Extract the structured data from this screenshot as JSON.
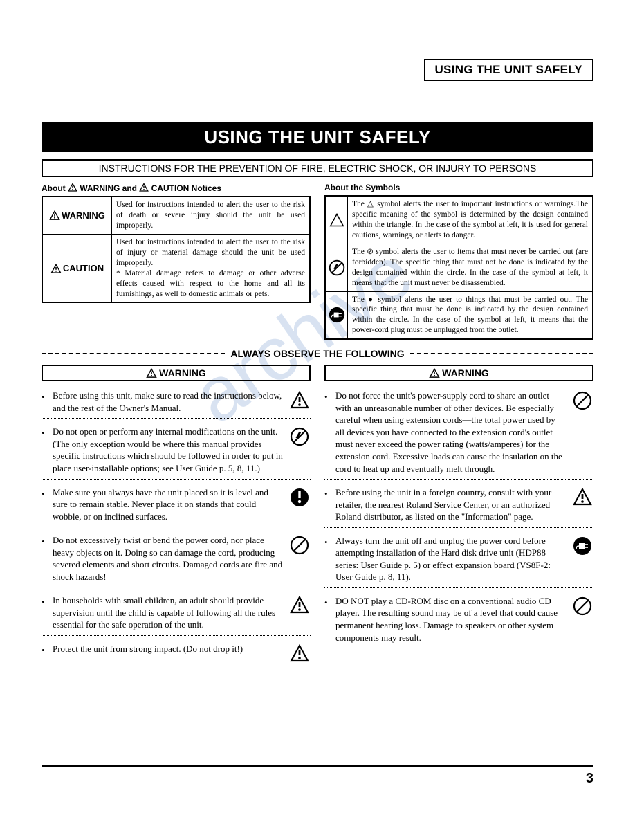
{
  "header": {
    "title": "USING THE UNIT SAFELY"
  },
  "banner": "USING THE UNIT SAFELY",
  "instructions_bar": "INSTRUCTIONS FOR THE PREVENTION OF FIRE, ELECTRIC SHOCK, OR INJURY TO PERSONS",
  "notices": {
    "heading": "About ⚠ WARNING and ⚠ CAUTION Notices",
    "rows": [
      {
        "label": "WARNING",
        "text": "Used for instructions intended to alert the user to the risk of death or severe injury should the unit be used improperly."
      },
      {
        "label": "CAUTION",
        "text": "Used for instructions intended to alert the user to the risk of injury or material damage should the unit be used improperly.\n* Material damage refers to damage or other adverse effects caused with respect to the home and all its furnishings, as well to domestic animals or pets."
      }
    ]
  },
  "symbols": {
    "heading": "About the Symbols",
    "rows": [
      {
        "icon": "triangle",
        "text": "The △ symbol alerts the user to important instructions or warnings.The specific meaning of the symbol is determined by the design contained within the triangle. In the case of the symbol at left, it is used for general cautions, warnings, or alerts to danger."
      },
      {
        "icon": "prohibit-disassemble",
        "text": "The ⊘ symbol alerts the user to items that must never be carried out (are forbidden). The specific thing that must not be done is indicated by the design contained within the circle. In the case of the symbol at left, it means that the unit must never be disassembled."
      },
      {
        "icon": "plug",
        "text": "The ● symbol alerts the user to things that must be carried out. The specific thing that must be done is indicated by the design contained within the circle. In the case of the symbol at left, it means that the power-cord plug must be unplugged from the outlet."
      }
    ]
  },
  "divider": "ALWAYS OBSERVE THE FOLLOWING",
  "warn_label": "WARNING",
  "left_items": [
    {
      "icon": "alert",
      "text": "Before using this unit, make sure to read the instructions below, and the rest of the Owner's Manual."
    },
    {
      "icon": "prohibit-disassemble",
      "text": "Do not open or perform any internal modifications on the unit. (The only exception would be where this manual provides specific instructions which should be followed in order to put in place user-installable options; see User Guide p. 5, 8, 11.)"
    },
    {
      "icon": "mandatory",
      "text": "Make sure you always have the unit placed so it is level and sure to remain stable. Never place it on stands that could wobble, or on inclined surfaces."
    },
    {
      "icon": "prohibit",
      "text": "Do not excessively twist or bend the power cord, nor place heavy objects on it. Doing so can damage the cord, producing severed elements and short circuits. Damaged cords are fire and shock hazards!"
    },
    {
      "icon": "alert",
      "text": "In households with small children, an adult should provide supervision until the child is capable of following all the rules essential for the safe operation of the unit."
    },
    {
      "icon": "alert",
      "text": "Protect the unit from strong impact. (Do not drop it!)"
    }
  ],
  "right_items": [
    {
      "icon": "prohibit",
      "text": "Do not force the unit's power-supply cord to share an outlet with an unreasonable number of other devices. Be especially careful when using extension cords—the total power used by all devices you have connected to the extension cord's outlet must never exceed the power rating (watts/amperes) for the extension cord. Excessive loads can cause the insulation on the cord to heat up and eventually melt through."
    },
    {
      "icon": "alert",
      "text": "Before using the unit in a foreign country, consult with your retailer, the nearest Roland Service Center, or an authorized Roland distributor, as listed on the \"Information\" page."
    },
    {
      "icon": "plug",
      "text": "Always turn the unit off and unplug the power cord before attempting installation of the Hard disk drive unit (HDP88 series: User Guide p. 5) or effect expansion board (VS8F-2: User Guide p. 8, 11)."
    },
    {
      "icon": "prohibit",
      "text": "DO NOT play a CD-ROM disc on a conventional audio CD player. The resulting sound may be of a level that could cause permanent hearing loss. Damage to speakers or other system components may result."
    }
  ],
  "page_number": "3",
  "colors": {
    "text": "#000000",
    "background": "#ffffff",
    "watermark": "rgba(100,140,200,0.25)"
  },
  "icons": {
    "alert": "triangle-exclaim",
    "prohibit": "circle-slash",
    "prohibit-disassemble": "circle-slash-tool",
    "mandatory": "solid-circle-exclaim",
    "plug": "solid-circle-plug",
    "triangle": "triangle-outline"
  }
}
